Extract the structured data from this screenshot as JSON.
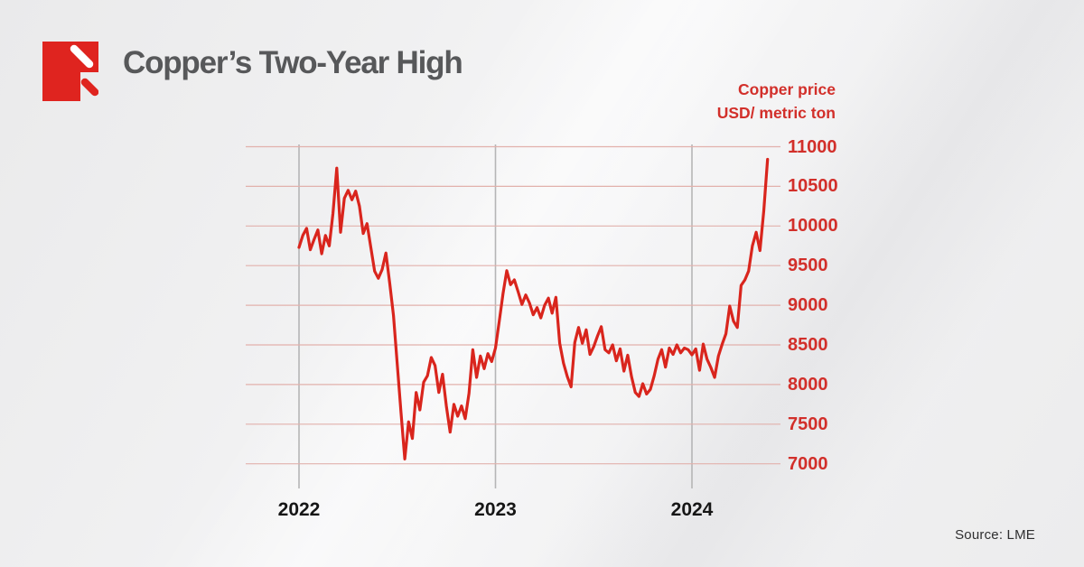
{
  "brand": {
    "color": "#df241f",
    "name": "logo"
  },
  "header": {
    "title": "Copper’s Two-Year High"
  },
  "chart": {
    "axis_title_line1": "Copper price",
    "axis_title_line2": "USD/ metric ton",
    "source": "Source: LME"
  },
  "chart_data": {
    "type": "line",
    "title": "Copper’s Two-Year High",
    "series_name": "LME copper price",
    "ylabel": "Copper price USD/ metric ton",
    "ylim": [
      7000,
      11000
    ],
    "y_ticks": [
      11000,
      10500,
      10000,
      9500,
      9000,
      8500,
      8000,
      7500,
      7000
    ],
    "x_tick_labels": [
      "2022",
      "2023",
      "2024"
    ],
    "x_start_year": 2022,
    "points_per_year": 52,
    "grid": "horizontal-and-yearly-vertical",
    "legend": "none",
    "line_color": "#d9251d",
    "h_grid_color": "#e2b1ac",
    "v_grid_color": "#b5b5b6",
    "tick_label_color": "#d22f2a",
    "values": [
      9730,
      9880,
      9970,
      9700,
      9830,
      9950,
      9650,
      9880,
      9750,
      10160,
      10730,
      9920,
      10350,
      10450,
      10330,
      10440,
      10250,
      9905,
      10030,
      9730,
      9430,
      9340,
      9450,
      9660,
      9280,
      8870,
      8250,
      7650,
      7060,
      7530,
      7320,
      7900,
      7680,
      8030,
      8110,
      8340,
      8240,
      7900,
      8130,
      7730,
      7400,
      7750,
      7600,
      7730,
      7570,
      7890,
      8440,
      8090,
      8360,
      8200,
      8390,
      8290,
      8460,
      8800,
      9150,
      9436,
      9260,
      9320,
      9170,
      9010,
      9130,
      9030,
      8880,
      8970,
      8840,
      9000,
      9090,
      8900,
      9100,
      8520,
      8270,
      8100,
      7970,
      8530,
      8720,
      8520,
      8690,
      8380,
      8480,
      8610,
      8730,
      8440,
      8400,
      8500,
      8300,
      8450,
      8170,
      8370,
      8100,
      7900,
      7850,
      8010,
      7880,
      7940,
      8110,
      8320,
      8440,
      8220,
      8460,
      8380,
      8500,
      8400,
      8460,
      8440,
      8375,
      8450,
      8180,
      8510,
      8320,
      8215,
      8090,
      8360,
      8510,
      8640,
      8990,
      8800,
      8720,
      9250,
      9320,
      9430,
      9750,
      9920,
      9690,
      10190,
      10840
    ]
  }
}
